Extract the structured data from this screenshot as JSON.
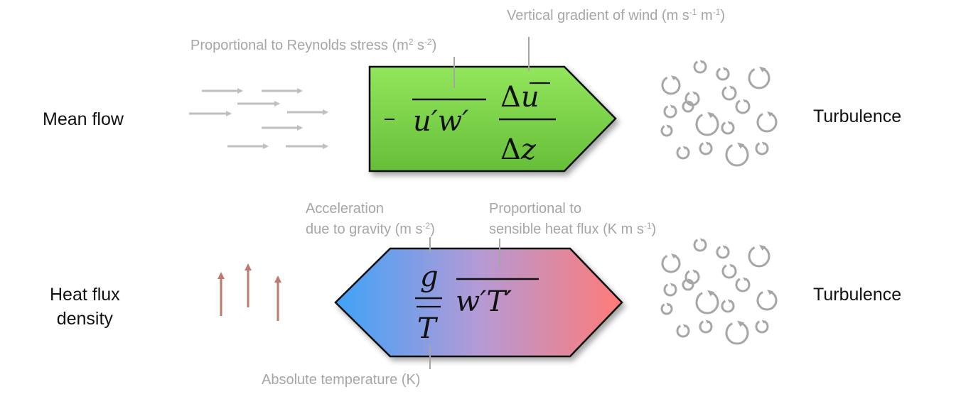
{
  "rows": [
    {
      "left_label": "Mean flow",
      "right_label": "Turbulence",
      "formula": {
        "sign": "-",
        "product": "u′w′",
        "numerator": "Δu̅",
        "denominator": "Δz"
      },
      "annotations": {
        "reynolds": {
          "text": "Proportional to Reynolds stress",
          "unit_prefix": "(m",
          "sup1": "2",
          "unit_mid": " s",
          "sup2": "-2",
          "unit_suffix": ")"
        },
        "gradient": {
          "text": "Vertical gradient of wind",
          "unit_prefix": "(m s",
          "sup1": "-1",
          "unit_mid": " m",
          "sup2": "-1",
          "unit_suffix": ")"
        }
      },
      "arrow_fill": [
        "#8fe45a",
        "#6cc43a"
      ],
      "icon_color": "#a6a6a6"
    },
    {
      "left_label_line1": "Heat flux",
      "left_label_line2": "density",
      "right_label": "Turbulence",
      "formula": {
        "numerator": "g",
        "denominator": "T̅",
        "product": "w′T′"
      },
      "annotations": {
        "gravity_line1": "Acceleration",
        "gravity_line2": {
          "text": "due to gravity (m s",
          "sup": "-2",
          "suffix": ")"
        },
        "heatflux_line1": "Proportional to",
        "heatflux_line2": {
          "text": "sensible heat flux (K m s",
          "sup": "-1",
          "suffix": ")"
        },
        "temperature": "Absolute temperature (K)"
      },
      "arrow_fill": [
        "#4aa3f5",
        "#b39ad4",
        "#ff7a78"
      ],
      "icon_color": "#c0796d"
    }
  ]
}
